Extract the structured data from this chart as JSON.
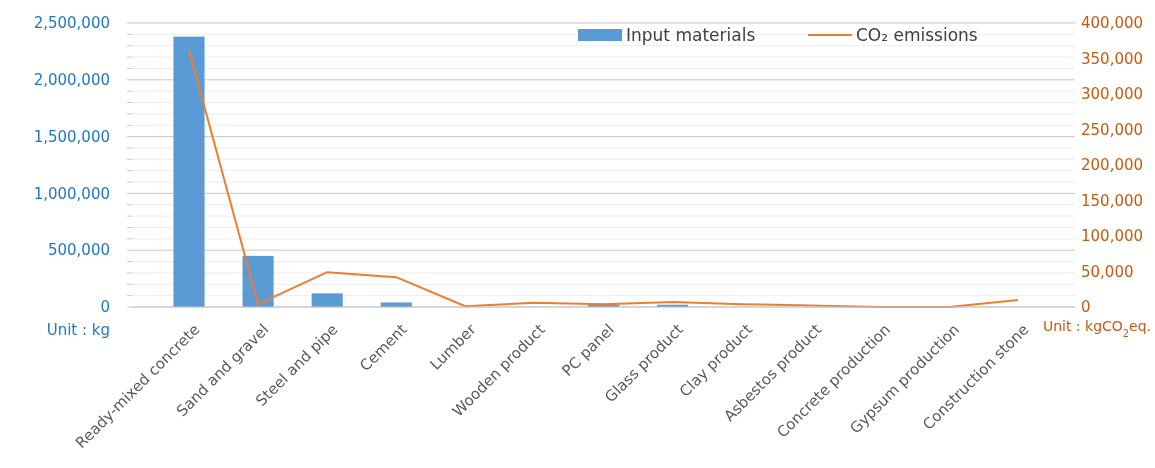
{
  "chart_data": {
    "type": "bar",
    "categories": [
      "Ready-mixed concrete",
      "Sand and gravel",
      "Steel and pipe",
      "Cement",
      "Lumber",
      "Wooden product",
      "PC panel",
      "Glass product",
      "Clay product",
      "Asbestos product",
      "Concrete production",
      "Gypsum production",
      "Construction stone"
    ],
    "series": [
      {
        "name": "Input materials",
        "color": "#5b9bd5",
        "values": [
          2380000,
          450000,
          120000,
          40000,
          0,
          0,
          20000,
          20000,
          0,
          0,
          0,
          0,
          0
        ]
      },
      {
        "name": "CO₂ emissions",
        "type": "line",
        "axis": "y2",
        "color": "#ed7d31",
        "values": [
          362000,
          4000,
          49000,
          42000,
          1000,
          6000,
          4000,
          7000,
          4000,
          2000,
          0,
          0,
          10000
        ]
      }
    ],
    "ylim": [
      0,
      2500000
    ],
    "yticks": [
      {
        "value": 0,
        "label": "0"
      },
      {
        "value": 100000,
        "label": null
      },
      {
        "value": 200000,
        "label": null
      },
      {
        "value": 300000,
        "label": null
      },
      {
        "value": 400000,
        "label": null
      },
      {
        "value": 500000,
        "label": "500,000"
      },
      {
        "value": 600000,
        "label": null
      },
      {
        "value": 700000,
        "label": null
      },
      {
        "value": 800000,
        "label": null
      },
      {
        "value": 900000,
        "label": null
      },
      {
        "value": 1000000,
        "label": "1,000,000"
      },
      {
        "value": 1100000,
        "label": null
      },
      {
        "value": 1200000,
        "label": null
      },
      {
        "value": 1300000,
        "label": null
      },
      {
        "value": 1400000,
        "label": null
      },
      {
        "value": 1500000,
        "label": "1,500,000"
      },
      {
        "value": 1600000,
        "label": null
      },
      {
        "value": 1700000,
        "label": null
      },
      {
        "value": 1800000,
        "label": null
      },
      {
        "value": 1900000,
        "label": null
      },
      {
        "value": 2000000,
        "label": "2,000,000"
      },
      {
        "value": 2100000,
        "label": null
      },
      {
        "value": 2200000,
        "label": null
      },
      {
        "value": 2300000,
        "label": null
      },
      {
        "value": 2400000,
        "label": null
      },
      {
        "value": 2500000,
        "label": "2,500,000"
      }
    ],
    "y2lim": [
      0,
      400000
    ],
    "y2ticks": [
      {
        "value": 0,
        "label": "0"
      },
      {
        "value": 50000,
        "label": "50,000"
      },
      {
        "value": 100000,
        "label": "100,000"
      },
      {
        "value": 150000,
        "label": "150,000"
      },
      {
        "value": 200000,
        "label": "200,000"
      },
      {
        "value": 250000,
        "label": "250,000"
      },
      {
        "value": 300000,
        "label": "300,000"
      },
      {
        "value": 350000,
        "label": "350,000"
      },
      {
        "value": 400000,
        "label": "400,000"
      }
    ],
    "grid": "y",
    "legend": "top right",
    "annotations": [
      "Unit : kg",
      "Unit : kgCO$_{2}$eq."
    ]
  }
}
